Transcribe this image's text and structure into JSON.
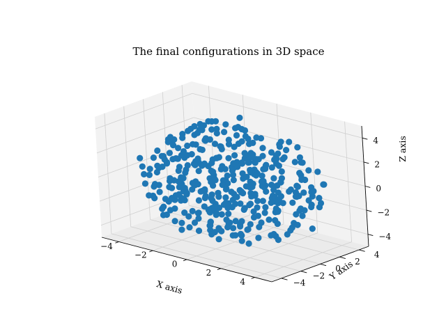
{
  "chart_data": {
    "type": "scatter",
    "title": "The final configurations in 3D space",
    "xlabel": "X axis",
    "ylabel": "Y axis",
    "zlabel": "Z axis",
    "xlim": [
      -5,
      5
    ],
    "ylim": [
      -5,
      5
    ],
    "zlim": [
      -5,
      5
    ],
    "x_ticks": [
      "−4",
      "−2",
      "0",
      "2",
      "4"
    ],
    "y_ticks": [
      "−4",
      "−2",
      "0",
      "2",
      "4"
    ],
    "z_ticks": [
      "−4",
      "−2",
      "0",
      "2",
      "4"
    ],
    "grid": true,
    "marker_color": "#1f77b4",
    "n_points": 420,
    "point_distribution": "approximately uniform inside a ball of radius ~5 centered at the origin"
  }
}
